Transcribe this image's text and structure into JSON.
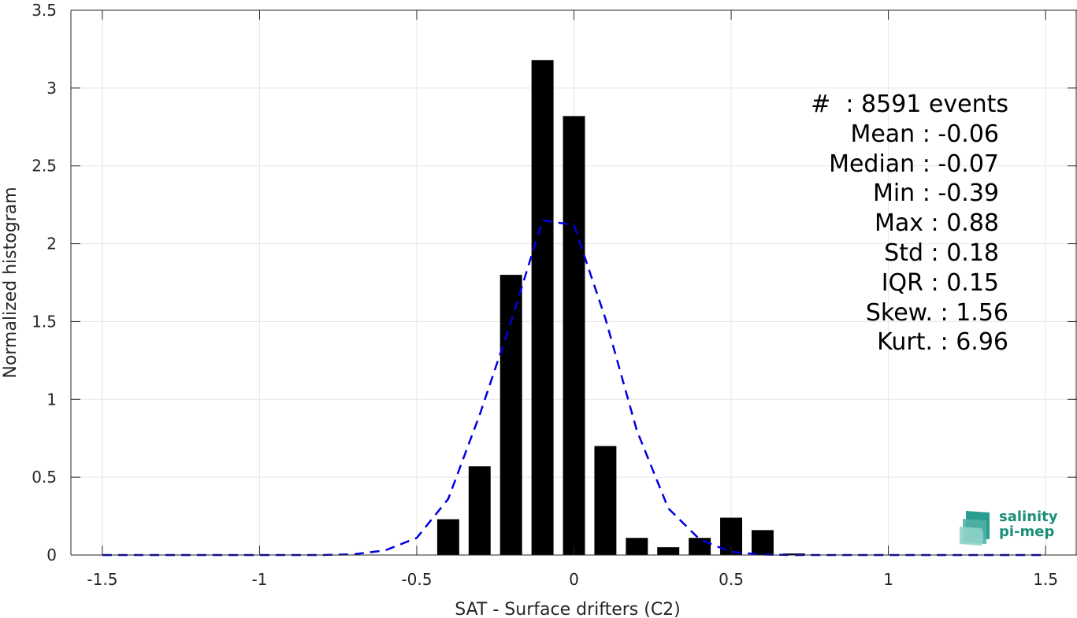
{
  "chart_data": {
    "type": "bar",
    "xlabel": "SAT - Surface drifters (C2)",
    "ylabel": "Normalized histogram",
    "xlim": [
      -1.6,
      1.6
    ],
    "ylim": [
      0,
      3.5
    ],
    "grid": true,
    "x_ticks": [
      -1.5,
      -1,
      -0.5,
      0,
      0.5,
      1,
      1.5
    ],
    "x_tick_labels": [
      "-1.5",
      "-1",
      "-0.5",
      "0",
      "0.5",
      "1",
      "1.5"
    ],
    "y_ticks": [
      0,
      0.5,
      1,
      1.5,
      2,
      2.5,
      3,
      3.5
    ],
    "y_tick_labels": [
      "0",
      "0.5",
      "1",
      "1.5",
      "2",
      "2.5",
      "3",
      "3.5"
    ],
    "bar_width": 0.07,
    "bars": {
      "x": [
        -0.4,
        -0.3,
        -0.2,
        -0.1,
        0.0,
        0.1,
        0.2,
        0.3,
        0.4,
        0.5,
        0.6,
        0.7
      ],
      "values": [
        0.23,
        0.57,
        1.8,
        3.18,
        2.82,
        0.7,
        0.11,
        0.05,
        0.11,
        0.24,
        0.16,
        0.01
      ],
      "color": "#000000"
    },
    "fit_curve": {
      "style": "dashed",
      "color": "#0000e0",
      "x": [
        -1.5,
        -1.4,
        -1.3,
        -1.2,
        -1.1,
        -1.0,
        -0.9,
        -0.8,
        -0.7,
        -0.6,
        -0.5,
        -0.4,
        -0.3,
        -0.2,
        -0.1,
        0.0,
        0.1,
        0.2,
        0.3,
        0.4,
        0.5,
        0.6,
        0.7,
        0.8,
        0.9,
        1.0,
        1.1,
        1.2,
        1.3,
        1.4,
        1.5
      ],
      "y": [
        0,
        0,
        0,
        0,
        0,
        0,
        0,
        0,
        0.005,
        0.03,
        0.11,
        0.36,
        0.9,
        1.5,
        2.15,
        2.12,
        1.52,
        0.8,
        0.3,
        0.1,
        0.02,
        0.003,
        0,
        0,
        0,
        0,
        0,
        0,
        0,
        0,
        0
      ]
    }
  },
  "stats": [
    {
      "label": "#  ",
      "value": ": 8591 events"
    },
    {
      "label": "Mean ",
      "value": ": -0.06"
    },
    {
      "label": "Median ",
      "value": ": -0.07"
    },
    {
      "label": "Min ",
      "value": ": -0.39"
    },
    {
      "label": "Max ",
      "value": ": 0.88"
    },
    {
      "label": "Std ",
      "value": ": 0.18"
    },
    {
      "label": "IQR ",
      "value": ": 0.15"
    },
    {
      "label": "Skew. ",
      "value": ": 1.56"
    },
    {
      "label": "Kurt. ",
      "value": ": 6.96"
    }
  ],
  "logo": {
    "line1": "salinity",
    "line2": "pi-mep"
  }
}
